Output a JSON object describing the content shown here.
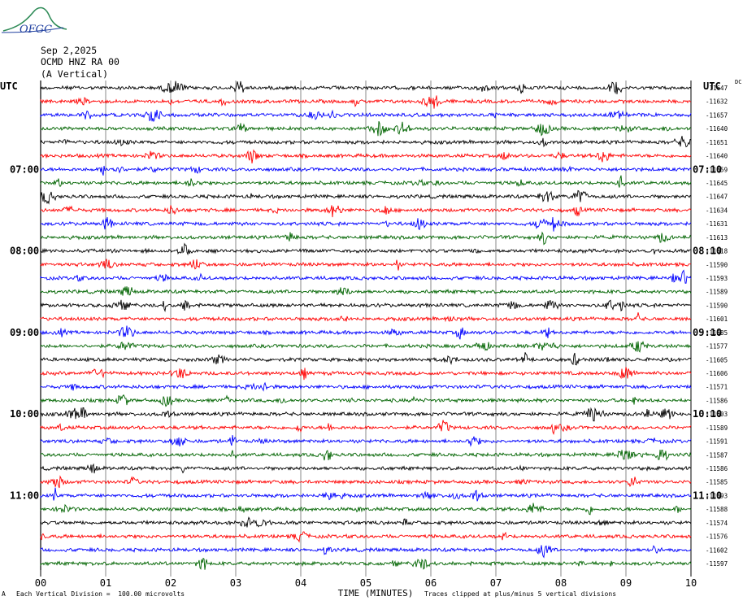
{
  "header": {
    "date": "Sep 2,2025",
    "station": "OCMD HNZ RA 00",
    "component": "(A Vertical)",
    "logo_text": "OFGC"
  },
  "footer": {
    "scale_note": "Each Vertical Division =  100.00 microvolts",
    "clip_note": "Traces clipped at plus/minus 5 vertical divisions",
    "corner_mark": "A"
  },
  "chart_data": {
    "type": "line",
    "title": "",
    "xlabel": "TIME (MINUTES)",
    "ylabel": "",
    "x_ticks": [
      "00",
      "01",
      "02",
      "03",
      "04",
      "05",
      "06",
      "07",
      "08",
      "09",
      "10"
    ],
    "xlim": [
      0,
      10
    ],
    "grid": true,
    "left_axis_label": "UTC",
    "right_axis_label": "UTC",
    "dc_label": "DC",
    "left_time_labels": [
      "07:00",
      "08:00",
      "09:00",
      "10:00",
      "11:00"
    ],
    "right_time_labels": [
      "07:10",
      "08:10",
      "09:10",
      "10:10",
      "11:10"
    ],
    "trace_colors": [
      "#000000",
      "#ff0000",
      "#0000ff",
      "#006400"
    ],
    "dc_offsets": [
      -11647,
      -11632,
      -11657,
      -11640,
      -11651,
      -11640,
      -11659,
      -11645,
      -11647,
      -11634,
      -11631,
      -11613,
      -11618,
      -11590,
      -11593,
      -11589,
      -11590,
      -11601,
      -11585,
      -11577,
      -11605,
      -11606,
      -11571,
      -11586,
      -11603,
      -11589,
      -11591,
      -11587,
      -11586,
      -11585,
      -11593,
      -11588,
      -11574,
      -11576,
      -11602,
      -11597
    ]
  }
}
